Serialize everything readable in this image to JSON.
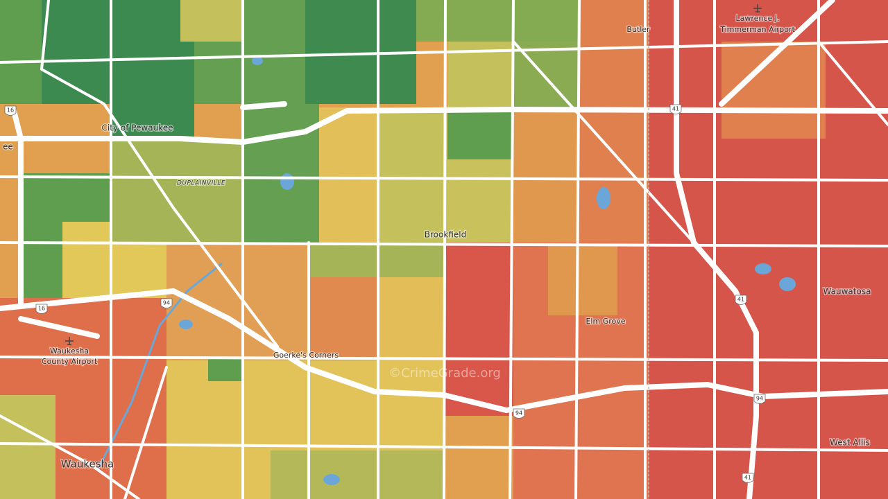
{
  "places": [
    "Butler",
    "Lawrence J.",
    "Timmerman Airport",
    "City of Pewaukee",
    "ee",
    "DUPLAINVILLE",
    "Brookfield",
    "Wauwatosa",
    "Elm Grove",
    "Goerke's Corners",
    "Waukesha",
    "County Airport",
    "Waukesha",
    "West Allis"
  ],
  "shields": [
    "16",
    "16",
    "94",
    "94",
    "94",
    "41",
    "41",
    "41"
  ],
  "watermark": "©CrimeGrade.org"
}
